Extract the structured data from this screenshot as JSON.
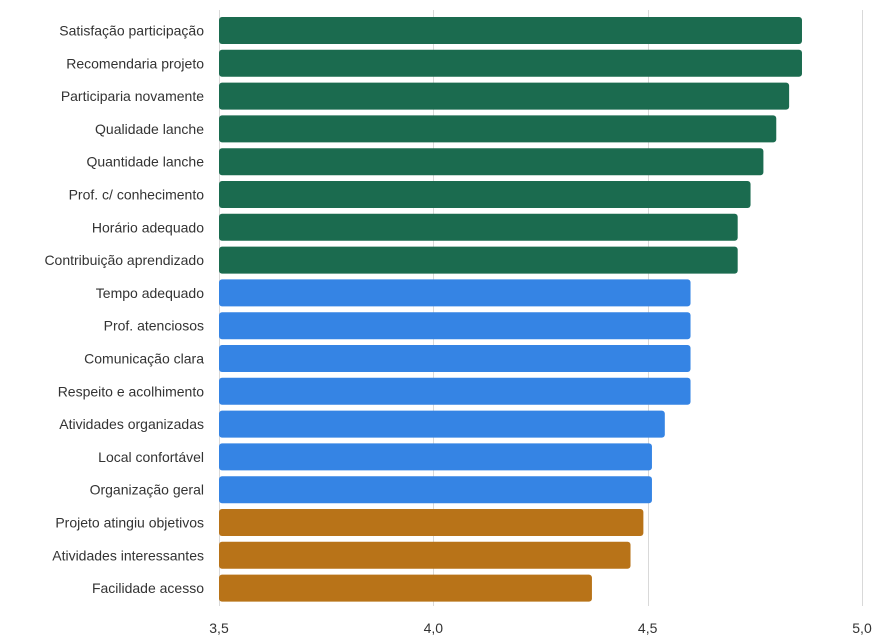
{
  "chart_data": {
    "type": "bar",
    "orientation": "horizontal",
    "title": "",
    "xlabel": "",
    "ylabel": "",
    "xlim": [
      3.5,
      5.0
    ],
    "xticks": [
      3.5,
      4.0,
      4.5,
      5.0
    ],
    "xtick_labels": [
      "3,5",
      "4,0",
      "4,5",
      "5,0"
    ],
    "grid": true,
    "legend": "none",
    "categories": [
      "Satisfação participação",
      "Recomendaria projeto",
      "Participaria novamente",
      "Qualidade lanche",
      "Quantidade lanche",
      "Prof. c/ conhecimento",
      "Horário adequado",
      "Contribuição aprendizado",
      "Tempo adequado",
      "Prof. atenciosos",
      "Comunicação clara",
      "Respeito e acolhimento",
      "Atividades organizadas",
      "Local confortável",
      "Organização geral",
      "Projeto atingiu objetivos",
      "Atividades interessantes",
      "Facilidade acesso"
    ],
    "values": [
      4.86,
      4.86,
      4.83,
      4.8,
      4.77,
      4.74,
      4.71,
      4.71,
      4.6,
      4.6,
      4.6,
      4.6,
      4.54,
      4.51,
      4.51,
      4.49,
      4.46,
      4.37
    ],
    "bar_colors": [
      "#1b6b4f",
      "#1b6b4f",
      "#1b6b4f",
      "#1b6b4f",
      "#1b6b4f",
      "#1b6b4f",
      "#1b6b4f",
      "#1b6b4f",
      "#3584e4",
      "#3584e4",
      "#3584e4",
      "#3584e4",
      "#3584e4",
      "#3584e4",
      "#3584e4",
      "#b87318",
      "#b87318",
      "#b87318"
    ]
  }
}
